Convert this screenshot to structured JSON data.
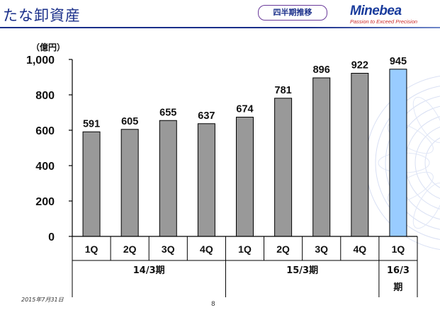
{
  "header": {
    "title": "たな卸資産",
    "badge": "四半期推移",
    "logo_word": "Minebea",
    "logo_tagline": "Passion to Exceed Precision"
  },
  "footer": {
    "date": "2015年7月31日",
    "page_number": "8"
  },
  "colors": {
    "title": "#1a2f8a",
    "bar_default": "#999999",
    "bar_highlight": "#99ccff",
    "bar_outline": "#000000"
  },
  "chart_data": {
    "type": "bar",
    "unit_label": "（億円）",
    "ylim": [
      0,
      1000
    ],
    "yticks": [
      0,
      200,
      400,
      600,
      800,
      1000
    ],
    "ytick_labels": [
      "0",
      "200",
      "400",
      "600",
      "800",
      "1,000"
    ],
    "grid": false,
    "categories": [
      "1Q",
      "2Q",
      "3Q",
      "4Q",
      "1Q",
      "2Q",
      "3Q",
      "4Q",
      "1Q"
    ],
    "values": [
      591,
      605,
      655,
      637,
      674,
      781,
      896,
      922,
      945
    ],
    "value_labels": [
      "591",
      "605",
      "655",
      "637",
      "674",
      "781",
      "896",
      "922",
      "945"
    ],
    "highlight_index": 8,
    "period_groups": [
      {
        "label": "14/3期",
        "start": 0,
        "end": 3
      },
      {
        "label": "15/3期",
        "start": 4,
        "end": 7
      },
      {
        "label_line1": "16/3",
        "label_line2": "期",
        "start": 8,
        "end": 8
      }
    ]
  }
}
